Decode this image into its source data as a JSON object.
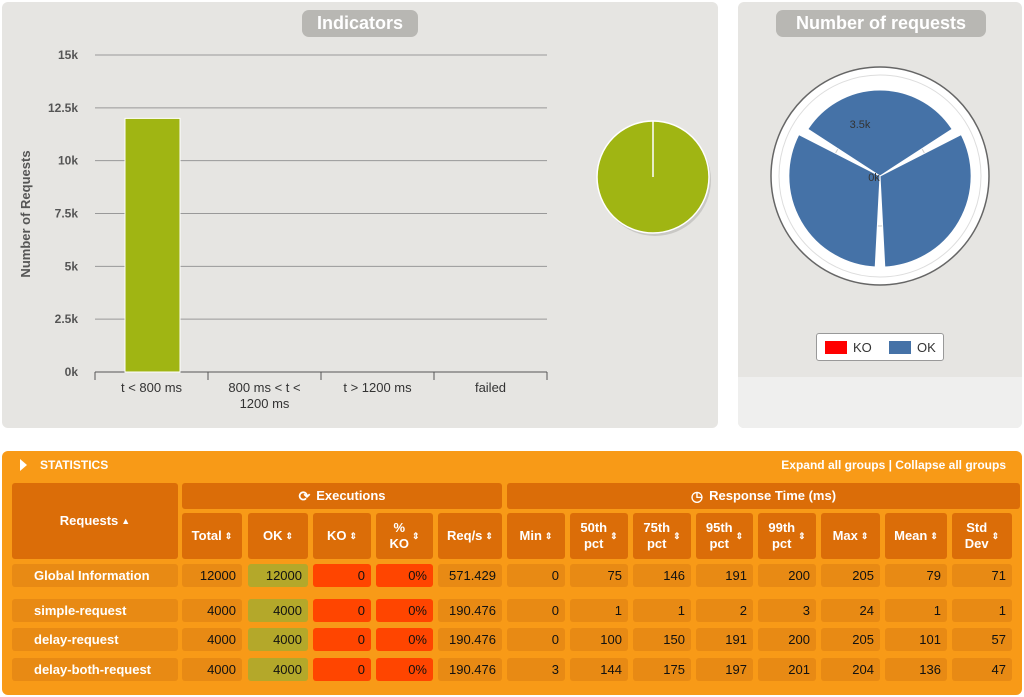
{
  "indicators": {
    "title": "Indicators",
    "ylabel": "Number of Requests"
  },
  "requests_chart": {
    "title": "Number of requests",
    "legend": [
      {
        "label": "KO",
        "color": "#ff0000"
      },
      {
        "label": "OK",
        "color": "#4572a7"
      }
    ],
    "center_label": "0k",
    "ring_label": "3.5k"
  },
  "chart_data": [
    {
      "type": "bar",
      "title": "Indicators",
      "ylabel": "Number of Requests",
      "xlabel": "",
      "categories": [
        "t < 800 ms",
        "800 ms < t < 1200 ms",
        "t > 1200 ms",
        "failed"
      ],
      "category_lines": [
        [
          "t < 800 ms"
        ],
        [
          "800 ms < t <",
          "1200 ms"
        ],
        [
          "t > 1200 ms"
        ],
        [
          "failed"
        ]
      ],
      "values": [
        12000,
        0,
        0,
        0
      ],
      "ylim": [
        0,
        15000
      ],
      "yticks": [
        0,
        2500,
        5000,
        7500,
        10000,
        12500,
        15000
      ],
      "ytick_labels": [
        "0k",
        "2.5k",
        "5k",
        "7.5k",
        "10k",
        "12.5k",
        "15k"
      ],
      "grid": true,
      "color": "#a0b513"
    },
    {
      "type": "pie",
      "labels": [
        "t < 800 ms",
        "800 ms < t < 1200 ms",
        "t > 1200 ms",
        "failed"
      ],
      "values": [
        12000,
        0,
        0,
        0
      ],
      "colors": [
        "#a0b513"
      ]
    },
    {
      "type": "bar",
      "title": "Number of requests",
      "polar": true,
      "categories": [
        "simple-request",
        "delay-request",
        "delay-both-request"
      ],
      "series": [
        {
          "name": "KO",
          "values": [
            0,
            0,
            0
          ]
        },
        {
          "name": "OK",
          "values": [
            4000,
            4000,
            4000
          ]
        }
      ],
      "legend_position": "bottom"
    }
  ],
  "stats": {
    "title": "STATISTICS",
    "links": "Expand all groups | Collapse all groups",
    "group_executions": "Executions",
    "group_response": "Response Time (ms)",
    "requests_header": "Requests",
    "columns": [
      [
        "Total"
      ],
      [
        "OK"
      ],
      [
        "KO"
      ],
      [
        "%",
        "KO"
      ],
      [
        "Req/s"
      ],
      [
        "Min"
      ],
      [
        "50th",
        "pct"
      ],
      [
        "75th",
        "pct"
      ],
      [
        "95th",
        "pct"
      ],
      [
        "99th",
        "pct"
      ],
      [
        "Max"
      ],
      [
        "Mean"
      ],
      [
        "Std",
        "Dev"
      ]
    ],
    "rows": [
      {
        "name": "Global Information",
        "values": [
          "12000",
          "12000",
          "0",
          "0%",
          "571.429",
          "0",
          "75",
          "146",
          "191",
          "200",
          "205",
          "79",
          "71"
        ]
      },
      {
        "name": "simple-request",
        "values": [
          "4000",
          "4000",
          "0",
          "0%",
          "190.476",
          "0",
          "1",
          "1",
          "2",
          "3",
          "24",
          "1",
          "1"
        ]
      },
      {
        "name": "delay-request",
        "values": [
          "4000",
          "4000",
          "0",
          "0%",
          "190.476",
          "0",
          "100",
          "150",
          "191",
          "200",
          "205",
          "101",
          "57"
        ]
      },
      {
        "name": "delay-both-request",
        "values": [
          "4000",
          "4000",
          "0",
          "0%",
          "190.476",
          "3",
          "144",
          "175",
          "197",
          "201",
          "204",
          "136",
          "47"
        ]
      }
    ]
  }
}
